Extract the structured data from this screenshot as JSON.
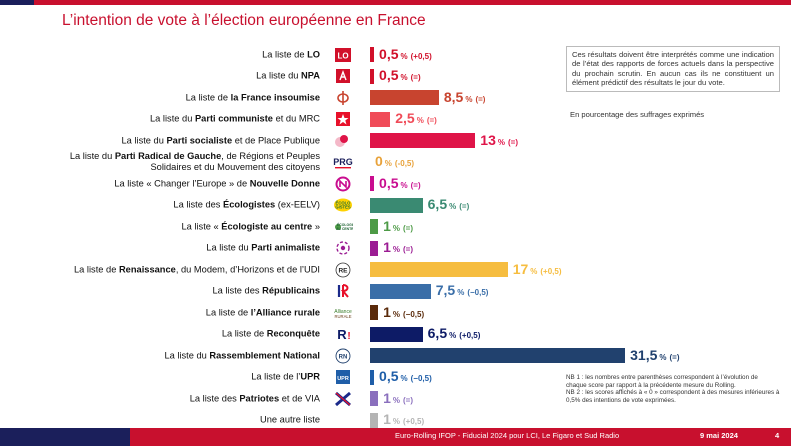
{
  "header": {
    "title": "L’intention de vote à l’élection européenne en France"
  },
  "notes": {
    "box": "Ces résultats doivent être interprétés comme une indication de l’état des rapports de forces actuels dans la perspective du prochain scrutin. En aucun cas ils ne constituent un élément prédictif des résultats le jour du vote.",
    "unit": "En pourcentage des suffrages exprimés",
    "nb1": "NB 1 : les nombres entre parenthèses correspondent à l’évolution de chaque score par rapport à la précédente mesure du Rolling.",
    "nb2": "NB 2 : les scores affichés à « 0 » correspondent à des mesures inférieures à 0,5% des intentions de vote exprimées."
  },
  "footer": {
    "source": "Euro-Rolling IFOP - Fiducial 2024 pour LCI, Le Figaro et Sud Radio",
    "date": "9 mai 2024",
    "page": "4"
  },
  "logos": [
    "LO",
    "NPA-icon",
    "France-insoumise-phi-icon",
    "PCF-star-icon",
    "PS-icon",
    "PRG",
    "Nouvelle-Donne-icon",
    "Ecologistes",
    "Ecologiste-au-centre",
    "Parti-animaliste-icon",
    "RE",
    "LR",
    "Alliance rurale",
    "Reconquete-R",
    "RN",
    "UPR",
    "Patriotes-icon",
    ""
  ],
  "chart_data": {
    "type": "bar",
    "orientation": "horizontal",
    "unit": "%",
    "categories": [
      {
        "pre": "La liste de ",
        "bold": "LO",
        "post": ""
      },
      {
        "pre": "La liste du ",
        "bold": "NPA",
        "post": ""
      },
      {
        "pre": "La liste de ",
        "bold": "la France insoumise",
        "post": ""
      },
      {
        "pre": "La liste du ",
        "bold": "Parti communiste",
        "post": " et du MRC"
      },
      {
        "pre": "La liste du ",
        "bold": "Parti socialiste",
        "post": " et de Place Publique"
      },
      {
        "pre": "La liste du ",
        "bold": "Parti Radical de Gauche",
        "post": ", de Régions et Peuples",
        "line2": "Solidaires et du Mouvement des citoyens"
      },
      {
        "pre": "La liste « Changer l’Europe » de ",
        "bold": "Nouvelle Donne",
        "post": ""
      },
      {
        "pre": "La liste des ",
        "bold": "Écologistes",
        "post": " (ex-EELV)"
      },
      {
        "pre": "La liste « ",
        "bold": "Écologiste au centre",
        "post": " »"
      },
      {
        "pre": "La liste du ",
        "bold": "Parti animaliste",
        "post": ""
      },
      {
        "pre": "La liste de ",
        "bold": "Renaissance",
        "post": ", du Modem, d’Horizons et de l’UDI"
      },
      {
        "pre": "La liste des ",
        "bold": "Républicains",
        "post": ""
      },
      {
        "pre": "La liste de ",
        "bold": "l’Alliance rurale",
        "post": ""
      },
      {
        "pre": "La liste de ",
        "bold": "Reconquête",
        "post": ""
      },
      {
        "pre": "La liste du ",
        "bold": "Rassemblement National",
        "post": ""
      },
      {
        "pre": "La liste de l’",
        "bold": "UPR",
        "post": ""
      },
      {
        "pre": "La liste des ",
        "bold": "Patriotes",
        "post": " et de VIA"
      },
      {
        "pre": "Une autre liste",
        "bold": "",
        "post": ""
      }
    ],
    "values": [
      0.5,
      0.5,
      8.5,
      2.5,
      13,
      0,
      0.5,
      6.5,
      1,
      1,
      17,
      7.5,
      1,
      6.5,
      31.5,
      0.5,
      1,
      1
    ],
    "value_labels": [
      "0,5",
      "0,5",
      "8,5",
      "2,5",
      "13",
      "0",
      "0,5",
      "6,5",
      "1",
      "1",
      "17",
      "7,5",
      "1",
      "6,5",
      "31,5",
      "0,5",
      "1",
      "1"
    ],
    "changes": [
      "(+0,5)",
      "(=)",
      "(=)",
      "(=)",
      "(=)",
      "(-0,5)",
      "(=)",
      "(=)",
      "(=)",
      "(=)",
      "(+0,5)",
      "(−0,5)",
      "(−0,5)",
      "(+0,5)",
      "(=)",
      "(−0,5)",
      "(=)",
      "(+0,5)"
    ],
    "colors": [
      "#d1102a",
      "#d1102a",
      "#c8442f",
      "#f04b58",
      "#df1448",
      "#e8a23a",
      "#c90d8f",
      "#3a8a72",
      "#4d9a46",
      "#9b1c93",
      "#f6bd40",
      "#3a6ea8",
      "#5a2a0a",
      "#0d1b66",
      "#21416e",
      "#1f5ea8",
      "#8a6fbd",
      "#b4b4b4"
    ],
    "value_colors": [
      "#d1102a",
      "#d1102a",
      "#c8442f",
      "#f04b58",
      "#df1448",
      "#e8a23a",
      "#c90d8f",
      "#3a8a72",
      "#4d9a46",
      "#9b1c93",
      "#f6bd40",
      "#3a6ea8",
      "#5a2a0a",
      "#0d1b66",
      "#21416e",
      "#1f5ea8",
      "#8a6fbd",
      "#b4b4b4"
    ],
    "xlim": [
      0,
      35
    ]
  }
}
